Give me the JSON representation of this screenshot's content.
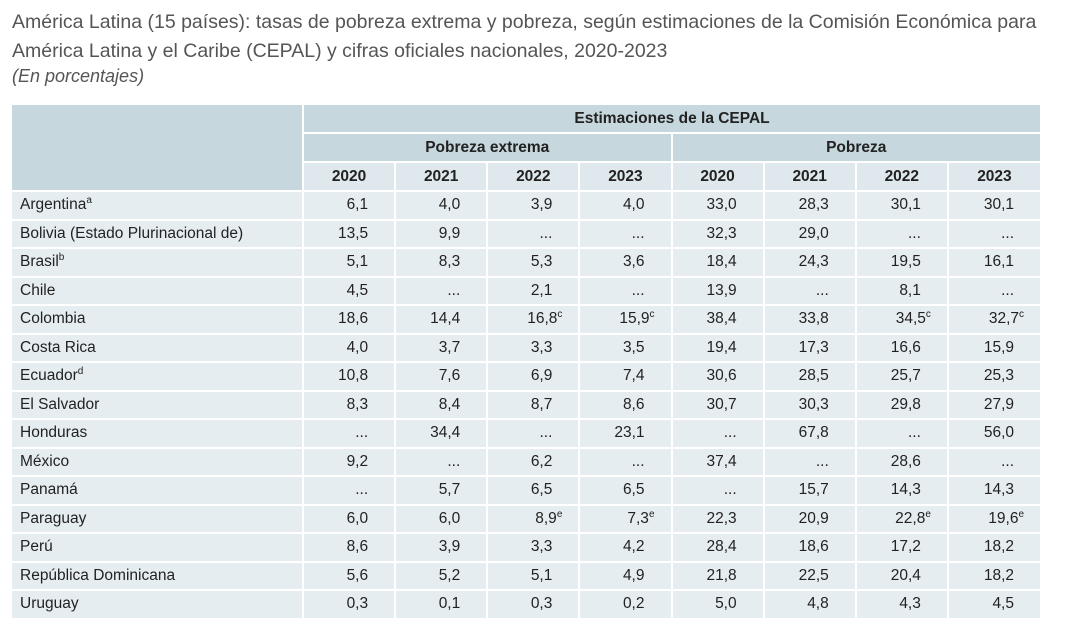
{
  "header": {
    "title": "América Latina (15 países): tasas de pobreza extrema y pobreza, según estimaciones de la Comisión Económica para América Latina y el Caribe (CEPAL) y cifras oficiales nacionales, 2020-2023",
    "subtitle": "(En porcentajes)"
  },
  "table": {
    "top_header": "Estimaciones de la CEPAL",
    "groups": [
      {
        "label": "Pobreza extrema",
        "years": [
          "2020",
          "2021",
          "2022",
          "2023"
        ]
      },
      {
        "label": "Pobreza",
        "years": [
          "2020",
          "2021",
          "2022",
          "2023"
        ]
      }
    ],
    "rows": [
      {
        "label": "Argentina",
        "note": "a",
        "cells": [
          "6,1",
          "4,0",
          "3,9",
          "4,0",
          "33,0",
          "28,3",
          "30,1",
          "30,1"
        ]
      },
      {
        "label": "Bolivia (Estado Plurinacional de)",
        "cells": [
          "13,5",
          "9,9",
          "...",
          "...",
          "32,3",
          "29,0",
          "...",
          "..."
        ]
      },
      {
        "label": "Brasil",
        "note": "b",
        "cells": [
          "5,1",
          "8,3",
          "5,3",
          "3,6",
          "18,4",
          "24,3",
          "19,5",
          "16,1"
        ]
      },
      {
        "label": "Chile",
        "cells": [
          "4,5",
          "...",
          "2,1",
          "...",
          "13,9",
          "...",
          "8,1",
          "..."
        ]
      },
      {
        "label": "Colombia",
        "cells": [
          "18,6",
          "14,4",
          {
            "text": "16,8",
            "note": "c"
          },
          {
            "text": "15,9",
            "note": "c"
          },
          "38,4",
          "33,8",
          {
            "text": "34,5",
            "note": "c"
          },
          {
            "text": "32,7",
            "note": "c"
          }
        ]
      },
      {
        "label": "Costa Rica",
        "cells": [
          "4,0",
          "3,7",
          "3,3",
          "3,5",
          "19,4",
          "17,3",
          "16,6",
          "15,9"
        ]
      },
      {
        "label": "Ecuador",
        "note": "d",
        "cells": [
          "10,8",
          "7,6",
          "6,9",
          "7,4",
          "30,6",
          "28,5",
          "25,7",
          "25,3"
        ]
      },
      {
        "label": "El Salvador",
        "cells": [
          "8,3",
          "8,4",
          "8,7",
          "8,6",
          "30,7",
          "30,3",
          "29,8",
          "27,9"
        ]
      },
      {
        "label": "Honduras",
        "cells": [
          "...",
          "34,4",
          "...",
          "23,1",
          "...",
          "67,8",
          "...",
          "56,0"
        ]
      },
      {
        "label": "México",
        "cells": [
          "9,2",
          "...",
          "6,2",
          "...",
          "37,4",
          "...",
          "28,6",
          "..."
        ]
      },
      {
        "label": "Panamá",
        "cells": [
          "...",
          "5,7",
          "6,5",
          "6,5",
          "...",
          "15,7",
          "14,3",
          "14,3"
        ]
      },
      {
        "label": "Paraguay",
        "cells": [
          "6,0",
          "6,0",
          {
            "text": "8,9",
            "note": "e"
          },
          {
            "text": "7,3",
            "note": "e"
          },
          "22,3",
          "20,9",
          {
            "text": "22,8",
            "note": "e"
          },
          {
            "text": "19,6",
            "note": "e"
          }
        ]
      },
      {
        "label": "Perú",
        "cells": [
          "8,6",
          "3,9",
          "3,3",
          "4,2",
          "28,4",
          "18,6",
          "17,2",
          "18,2"
        ]
      },
      {
        "label": "República Dominicana",
        "cells": [
          "5,6",
          "5,2",
          "5,1",
          "4,9",
          "21,8",
          "22,5",
          "20,4",
          "18,2"
        ]
      },
      {
        "label": "Uruguay",
        "cells": [
          "0,3",
          "0,1",
          "0,3",
          "0,2",
          "5,0",
          "4,8",
          "4,3",
          "4,5"
        ]
      }
    ]
  }
}
